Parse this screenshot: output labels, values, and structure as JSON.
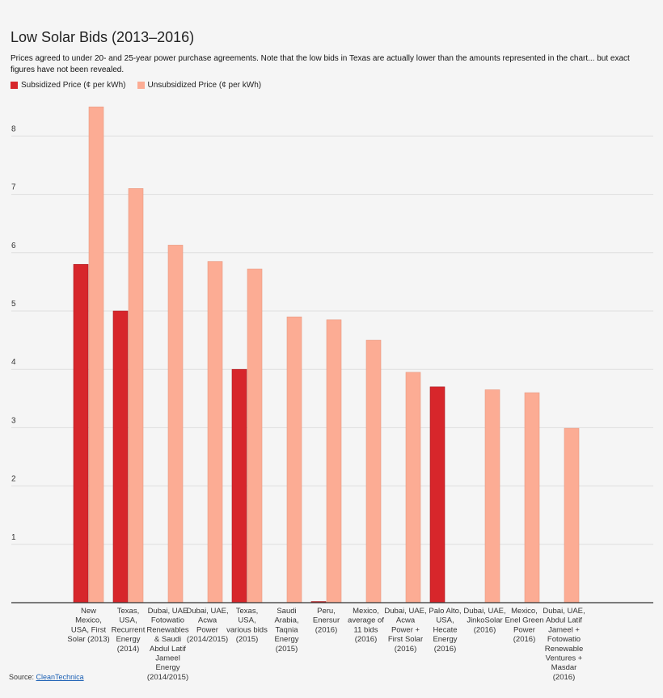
{
  "chart_data": {
    "type": "bar",
    "title": "Low Solar Bids (2013–2016)",
    "subtitle": "Prices agreed to under 20- and 25-year power purchase agreements. Note that the low bids in Texas are actually lower than the amounts represented in the chart... but exact figures have not been revealed.",
    "categories": [
      [
        "New",
        "Mexico,",
        "USA, First",
        "Solar (2013)"
      ],
      [
        "Texas,",
        "USA,",
        "Recurrent",
        "Energy",
        "(2014)"
      ],
      [
        "Dubai, UAE",
        "Fotowatio",
        "Renewables",
        "& Saudi",
        "Abdul Latif",
        "Jameel",
        "Energy",
        "(2014/2015)"
      ],
      [
        "Dubai, UAE,",
        "Acwa",
        "Power",
        "(2014/2015)"
      ],
      [
        "Texas,",
        "USA,",
        "various bids",
        "(2015)"
      ],
      [
        "Saudi",
        "Arabia,",
        "Taqnia",
        "Energy",
        "(2015)"
      ],
      [
        "Peru,",
        "Enersur",
        "(2016)"
      ],
      [
        "Mexico,",
        "average of",
        "11 bids",
        "(2016)"
      ],
      [
        "Dubai, UAE,",
        "Acwa",
        "Power +",
        "First Solar",
        "(2016)"
      ],
      [
        "Palo Alto,",
        "USA,",
        "Hecate",
        "Energy",
        "(2016)"
      ],
      [
        "Dubai, UAE,",
        "JinkoSolar",
        "(2016)"
      ],
      [
        "Mexico,",
        "Enel Green",
        "Power",
        "(2016)"
      ],
      [
        "Dubai, UAE,",
        "Abdul Latif",
        "Jameel +",
        "Fotowatio",
        "Renewable",
        "Ventures +",
        "Masdar",
        "(2016)"
      ]
    ],
    "series": [
      {
        "name": "Subsidized Price (¢ per kWh)",
        "color": "#d7262b",
        "values": [
          5.8,
          5.0,
          0,
          0,
          4.0,
          0,
          0.02,
          0,
          0,
          3.7,
          0,
          0,
          0
        ]
      },
      {
        "name": "Unsubsidized Price (¢ per kWh)",
        "color": "#fcac94",
        "values": [
          8.5,
          7.1,
          6.13,
          5.85,
          5.72,
          4.9,
          4.85,
          4.5,
          3.95,
          0,
          3.65,
          3.6,
          2.99
        ]
      }
    ],
    "yticks": [
      1,
      2,
      3,
      4,
      5,
      6,
      7,
      8
    ],
    "ylim": [
      0,
      9
    ],
    "grid": true,
    "legend_position": "top-left"
  },
  "source": {
    "label": "Source:",
    "link_text": "CleanTechnica"
  }
}
